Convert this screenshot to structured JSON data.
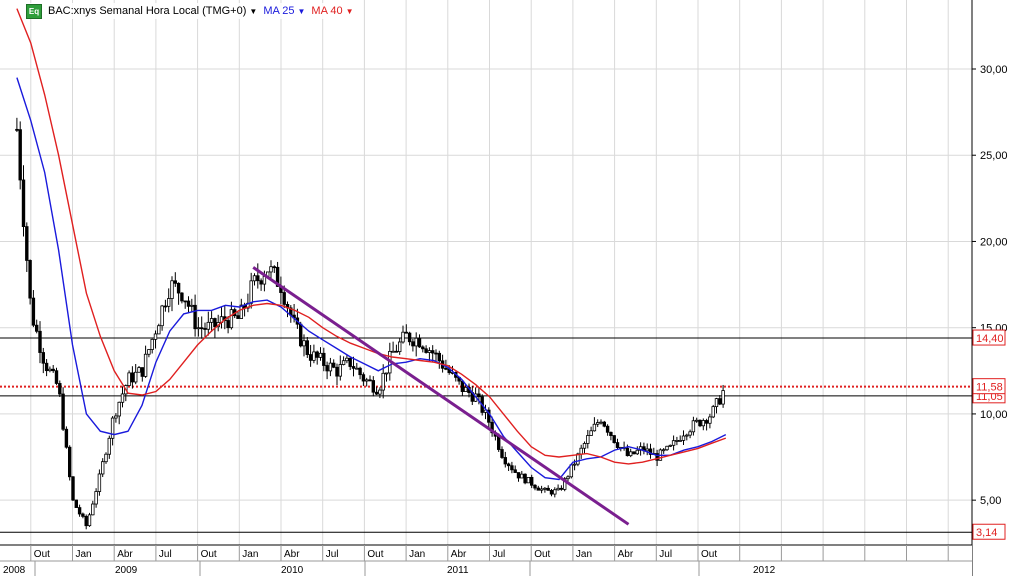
{
  "legend": {
    "badge": "Eq",
    "symbol_title": "BAC:xnys Semanal Hora Local (TMG+0)",
    "ma25_label": "MA 25",
    "ma40_label": "MA 40",
    "ma25_color": "#1a1adc",
    "ma40_color": "#e02020"
  },
  "chart_data": {
    "type": "candlestick",
    "symbol": "BAC:xnys",
    "interval": "Semanal",
    "ylim": [
      2.4,
      34
    ],
    "y_ticks": [
      "5,00",
      "10,00",
      "15,00",
      "20,00",
      "25,00",
      "30,00"
    ],
    "y_tick_values": [
      5,
      10,
      15,
      20,
      25,
      30
    ],
    "x_month_ticks": [
      "Out",
      "Jan",
      "Abr",
      "Jul",
      "Out",
      "Jan",
      "Abr",
      "Jul",
      "Out",
      "Jan",
      "Abr",
      "Jul",
      "Out",
      "Jan",
      "Abr",
      "Jul",
      "Out"
    ],
    "x_years": [
      "2008",
      "2009",
      "2010",
      "2011",
      "2012"
    ],
    "horizontal_levels": [
      {
        "value": 14.4,
        "label": "14,40",
        "style": "solid",
        "color": "#000000",
        "label_color": "#e02020"
      },
      {
        "value": 11.05,
        "label": "11,05",
        "style": "solid",
        "color": "#000000",
        "label_color": "#e02020"
      },
      {
        "value": 11.58,
        "label": "11,58",
        "style": "dotted",
        "color": "#e02020",
        "label_color": "#e02020"
      },
      {
        "value": 3.14,
        "label": "3,14",
        "style": "solid",
        "color": "#000000",
        "label_color": "#e02020"
      }
    ],
    "trendline": {
      "color": "#7a1f8f",
      "points": [
        [
          "2010-02",
          18.5
        ],
        [
          "2012-05",
          3.6
        ]
      ]
    },
    "price_path": [
      [
        "2008-09",
        26.5
      ],
      [
        "2008-10",
        16.0
      ],
      [
        "2008-11",
        13.0
      ],
      [
        "2008-12",
        11.5
      ],
      [
        "2009-01",
        5.0
      ],
      [
        "2009-02",
        3.5
      ],
      [
        "2009-03",
        6.5
      ],
      [
        "2009-04",
        10.0
      ],
      [
        "2009-05",
        12.0
      ],
      [
        "2009-06",
        12.5
      ],
      [
        "2009-07",
        15.0
      ],
      [
        "2009-08",
        17.5
      ],
      [
        "2009-09",
        17.0
      ],
      [
        "2009-10",
        15.0
      ],
      [
        "2009-11",
        15.0
      ],
      [
        "2009-12",
        15.5
      ],
      [
        "2010-01",
        15.5
      ],
      [
        "2010-02",
        17.5
      ],
      [
        "2010-03",
        18.5
      ],
      [
        "2010-04",
        17.5
      ],
      [
        "2010-05",
        15.0
      ],
      [
        "2010-06",
        13.5
      ],
      [
        "2010-07",
        13.0
      ],
      [
        "2010-08",
        12.5
      ],
      [
        "2010-09",
        13.0
      ],
      [
        "2010-10",
        12.0
      ],
      [
        "2010-11",
        11.5
      ],
      [
        "2010-12",
        13.5
      ],
      [
        "2011-01",
        14.5
      ],
      [
        "2011-02",
        14.3
      ],
      [
        "2011-03",
        13.5
      ],
      [
        "2011-04",
        12.5
      ],
      [
        "2011-05",
        11.5
      ],
      [
        "2011-06",
        11.0
      ],
      [
        "2011-07",
        9.5
      ],
      [
        "2011-08",
        7.5
      ],
      [
        "2011-09",
        6.5
      ],
      [
        "2011-10",
        6.0
      ],
      [
        "2011-11",
        5.5
      ],
      [
        "2011-12",
        5.5
      ],
      [
        "2012-01",
        7.0
      ],
      [
        "2012-02",
        8.5
      ],
      [
        "2012-03",
        9.8
      ],
      [
        "2012-04",
        8.5
      ],
      [
        "2012-05",
        7.5
      ],
      [
        "2012-06",
        8.0
      ],
      [
        "2012-07",
        7.5
      ],
      [
        "2012-08",
        8.0
      ],
      [
        "2012-09",
        9.0
      ],
      [
        "2012-10",
        9.5
      ],
      [
        "2012-11",
        10.0
      ],
      [
        "2012-12",
        11.6
      ]
    ],
    "series": [
      {
        "name": "MA 25",
        "color": "#1a1adc",
        "points": [
          [
            "2008-09",
            29.5
          ],
          [
            "2008-10",
            27.0
          ],
          [
            "2008-11",
            24.0
          ],
          [
            "2008-12",
            19.5
          ],
          [
            "2009-01",
            14.0
          ],
          [
            "2009-02",
            10.0
          ],
          [
            "2009-03",
            9.0
          ],
          [
            "2009-04",
            8.8
          ],
          [
            "2009-05",
            9.0
          ],
          [
            "2009-06",
            10.5
          ],
          [
            "2009-07",
            13.0
          ],
          [
            "2009-08",
            14.8
          ],
          [
            "2009-09",
            15.8
          ],
          [
            "2009-10",
            16.0
          ],
          [
            "2009-11",
            16.0
          ],
          [
            "2009-12",
            16.3
          ],
          [
            "2010-01",
            16.2
          ],
          [
            "2010-02",
            16.5
          ],
          [
            "2010-03",
            16.6
          ],
          [
            "2010-04",
            16.2
          ],
          [
            "2010-05",
            15.5
          ],
          [
            "2010-06",
            14.8
          ],
          [
            "2010-07",
            14.3
          ],
          [
            "2010-08",
            13.8
          ],
          [
            "2010-09",
            13.3
          ],
          [
            "2010-10",
            12.9
          ],
          [
            "2010-11",
            12.5
          ],
          [
            "2010-12",
            12.9
          ],
          [
            "2011-01",
            13.0
          ],
          [
            "2011-02",
            13.2
          ],
          [
            "2011-03",
            13.1
          ],
          [
            "2011-04",
            12.7
          ],
          [
            "2011-05",
            12.0
          ],
          [
            "2011-06",
            11.0
          ],
          [
            "2011-07",
            10.0
          ],
          [
            "2011-08",
            8.7
          ],
          [
            "2011-09",
            7.8
          ],
          [
            "2011-10",
            6.9
          ],
          [
            "2011-11",
            6.3
          ],
          [
            "2011-12",
            6.2
          ],
          [
            "2012-01",
            7.2
          ],
          [
            "2012-02",
            7.4
          ],
          [
            "2012-03",
            7.5
          ],
          [
            "2012-04",
            7.9
          ],
          [
            "2012-05",
            8.1
          ],
          [
            "2012-06",
            7.9
          ],
          [
            "2012-07",
            7.6
          ],
          [
            "2012-08",
            7.6
          ],
          [
            "2012-09",
            7.9
          ],
          [
            "2012-10",
            8.1
          ],
          [
            "2012-11",
            8.4
          ],
          [
            "2012-12",
            8.8
          ]
        ]
      },
      {
        "name": "MA 40",
        "color": "#e02020",
        "points": [
          [
            "2008-09",
            33.5
          ],
          [
            "2008-10",
            31.5
          ],
          [
            "2008-11",
            28.5
          ],
          [
            "2008-12",
            25.0
          ],
          [
            "2009-01",
            21.0
          ],
          [
            "2009-02",
            17.0
          ],
          [
            "2009-03",
            14.5
          ],
          [
            "2009-04",
            12.5
          ],
          [
            "2009-05",
            11.2
          ],
          [
            "2009-06",
            11.1
          ],
          [
            "2009-07",
            11.3
          ],
          [
            "2009-08",
            12.0
          ],
          [
            "2009-09",
            13.0
          ],
          [
            "2009-10",
            14.0
          ],
          [
            "2009-11",
            14.8
          ],
          [
            "2009-12",
            15.5
          ],
          [
            "2010-01",
            16.0
          ],
          [
            "2010-02",
            16.3
          ],
          [
            "2010-03",
            16.4
          ],
          [
            "2010-04",
            16.3
          ],
          [
            "2010-05",
            16.0
          ],
          [
            "2010-06",
            15.6
          ],
          [
            "2010-07",
            15.0
          ],
          [
            "2010-08",
            14.5
          ],
          [
            "2010-09",
            14.1
          ],
          [
            "2010-10",
            13.8
          ],
          [
            "2010-11",
            13.5
          ],
          [
            "2010-12",
            13.3
          ],
          [
            "2011-01",
            13.2
          ],
          [
            "2011-02",
            13.1
          ],
          [
            "2011-03",
            13.0
          ],
          [
            "2011-04",
            12.8
          ],
          [
            "2011-05",
            12.3
          ],
          [
            "2011-06",
            11.7
          ],
          [
            "2011-07",
            11.0
          ],
          [
            "2011-08",
            10.0
          ],
          [
            "2011-09",
            9.0
          ],
          [
            "2011-10",
            8.1
          ],
          [
            "2011-11",
            7.6
          ],
          [
            "2011-12",
            7.5
          ],
          [
            "2012-01",
            7.6
          ],
          [
            "2012-02",
            7.7
          ],
          [
            "2012-03",
            7.5
          ],
          [
            "2012-04",
            7.2
          ],
          [
            "2012-05",
            7.1
          ],
          [
            "2012-06",
            7.2
          ],
          [
            "2012-07",
            7.4
          ],
          [
            "2012-08",
            7.6
          ],
          [
            "2012-09",
            7.8
          ],
          [
            "2012-10",
            8.0
          ],
          [
            "2012-11",
            8.3
          ],
          [
            "2012-12",
            8.6
          ]
        ]
      }
    ],
    "grid": true
  }
}
